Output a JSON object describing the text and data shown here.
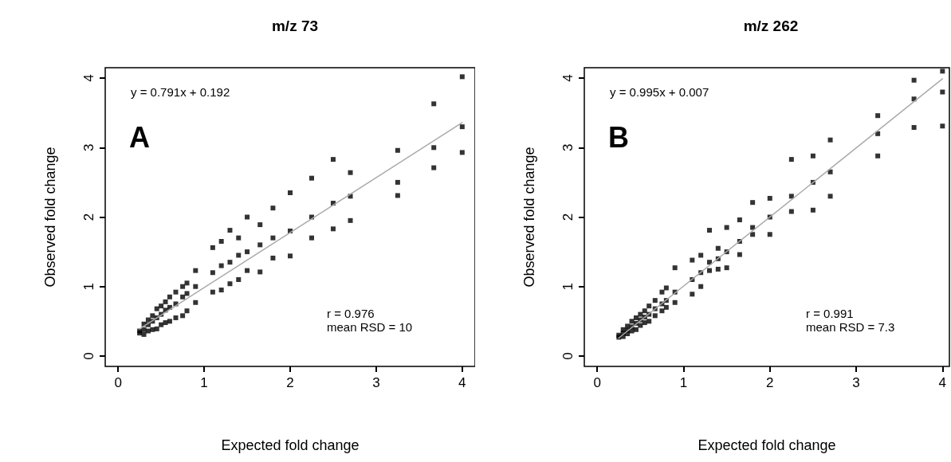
{
  "chart_data": [
    {
      "type": "scatter",
      "title": "m/z 73",
      "xlabel": "Expected fold change",
      "ylabel": "Observed fold change",
      "annotations": [
        "y = 0.791x + 0.192",
        "A",
        "r = 0.976\nmean RSD = 10"
      ],
      "xlim": [
        -0.15,
        4.15
      ],
      "ylim": [
        -0.15,
        4.15
      ],
      "xticks": [
        0,
        1,
        2,
        3,
        4
      ],
      "yticks": [
        0,
        1,
        2,
        3,
        4
      ],
      "grid": false,
      "series": [
        {
          "type": "scatter",
          "marker": "square",
          "color": "#000000",
          "x": [
            0.25,
            0.25,
            0.3,
            0.3,
            0.3,
            0.35,
            0.35,
            0.35,
            0.4,
            0.4,
            0.4,
            0.45,
            0.45,
            0.45,
            0.5,
            0.5,
            0.5,
            0.55,
            0.55,
            0.55,
            0.6,
            0.6,
            0.6,
            0.67,
            0.67,
            0.67,
            0.75,
            0.75,
            0.75,
            0.8,
            0.8,
            0.8,
            0.9,
            0.9,
            0.9,
            1.1,
            1.1,
            1.1,
            1.2,
            1.2,
            1.2,
            1.3,
            1.3,
            1.3,
            1.4,
            1.4,
            1.4,
            1.5,
            1.5,
            1.5,
            1.65,
            1.65,
            1.65,
            1.8,
            1.8,
            1.8,
            2,
            2,
            2,
            2.25,
            2.25,
            2.25,
            2.5,
            2.5,
            2.5,
            2.7,
            2.7,
            2.7,
            3.25,
            3.25,
            3.25,
            3.67,
            3.67,
            3.67,
            4,
            4,
            4
          ],
          "values": [
            0.33,
            0.36,
            0.31,
            0.38,
            0.46,
            0.36,
            0.45,
            0.52,
            0.38,
            0.5,
            0.58,
            0.39,
            0.55,
            0.68,
            0.45,
            0.6,
            0.72,
            0.48,
            0.66,
            0.78,
            0.5,
            0.7,
            0.85,
            0.55,
            0.75,
            0.92,
            0.58,
            0.85,
            1.0,
            0.65,
            0.9,
            1.05,
            0.77,
            1.0,
            1.23,
            0.92,
            1.2,
            1.56,
            0.95,
            1.3,
            1.65,
            1.04,
            1.35,
            1.81,
            1.1,
            1.45,
            1.7,
            1.23,
            1.5,
            2.0,
            1.21,
            1.6,
            1.89,
            1.41,
            1.7,
            2.13,
            1.44,
            1.8,
            2.35,
            1.7,
            2.0,
            2.56,
            1.83,
            2.2,
            2.83,
            1.95,
            2.3,
            2.64,
            2.31,
            2.5,
            2.96,
            2.71,
            3.0,
            3.63,
            2.93,
            3.3,
            4.02
          ]
        },
        {
          "type": "line",
          "color": "#aaaaaa",
          "x": [
            0.25,
            4
          ],
          "values": [
            0.39,
            3.36
          ]
        }
      ]
    },
    {
      "type": "scatter",
      "title": "m/z 262",
      "xlabel": "Expected fold change",
      "ylabel": "Observed fold change",
      "annotations": [
        "y = 0.995x + 0.007",
        "B",
        "r = 0.991\nmean RSD = 7.3"
      ],
      "xlim": [
        -0.15,
        4.08
      ],
      "ylim": [
        -0.15,
        4.15
      ],
      "xticks": [
        0,
        1,
        2,
        3,
        4
      ],
      "yticks": [
        0,
        1,
        2,
        3,
        4
      ],
      "grid": false,
      "series": [
        {
          "type": "scatter",
          "marker": "square",
          "color": "#000000",
          "x": [
            0.25,
            0.25,
            0.3,
            0.3,
            0.3,
            0.35,
            0.35,
            0.35,
            0.4,
            0.4,
            0.4,
            0.45,
            0.45,
            0.45,
            0.5,
            0.5,
            0.5,
            0.55,
            0.55,
            0.55,
            0.6,
            0.6,
            0.6,
            0.67,
            0.67,
            0.67,
            0.75,
            0.75,
            0.75,
            0.8,
            0.8,
            0.8,
            0.9,
            0.9,
            0.9,
            1.1,
            1.1,
            1.1,
            1.2,
            1.2,
            1.2,
            1.3,
            1.3,
            1.3,
            1.4,
            1.4,
            1.4,
            1.5,
            1.5,
            1.5,
            1.65,
            1.65,
            1.65,
            1.8,
            1.8,
            1.8,
            2,
            2,
            2,
            2.25,
            2.25,
            2.25,
            2.5,
            2.5,
            2.5,
            2.7,
            2.7,
            2.7,
            3.25,
            3.25,
            3.25,
            3.67,
            3.67,
            3.67,
            4,
            4,
            4
          ],
          "values": [
            0.27,
            0.3,
            0.28,
            0.33,
            0.38,
            0.32,
            0.37,
            0.43,
            0.36,
            0.42,
            0.5,
            0.38,
            0.47,
            0.55,
            0.44,
            0.52,
            0.6,
            0.48,
            0.56,
            0.65,
            0.5,
            0.6,
            0.72,
            0.58,
            0.68,
            0.8,
            0.65,
            0.75,
            0.92,
            0.7,
            0.8,
            0.98,
            0.77,
            0.92,
            1.27,
            0.89,
            1.1,
            1.38,
            1.0,
            1.2,
            1.45,
            1.23,
            1.35,
            1.81,
            1.25,
            1.4,
            1.55,
            1.27,
            1.5,
            1.85,
            1.46,
            1.65,
            1.96,
            1.75,
            1.85,
            2.21,
            1.75,
            2.0,
            2.27,
            2.08,
            2.3,
            2.83,
            2.1,
            2.5,
            2.88,
            2.3,
            2.65,
            3.11,
            2.88,
            3.2,
            3.46,
            3.29,
            3.7,
            3.97,
            3.31,
            3.8,
            4.1
          ]
        },
        {
          "type": "line",
          "color": "#aaaaaa",
          "x": [
            0.25,
            4
          ],
          "values": [
            0.26,
            3.99
          ]
        }
      ]
    }
  ]
}
